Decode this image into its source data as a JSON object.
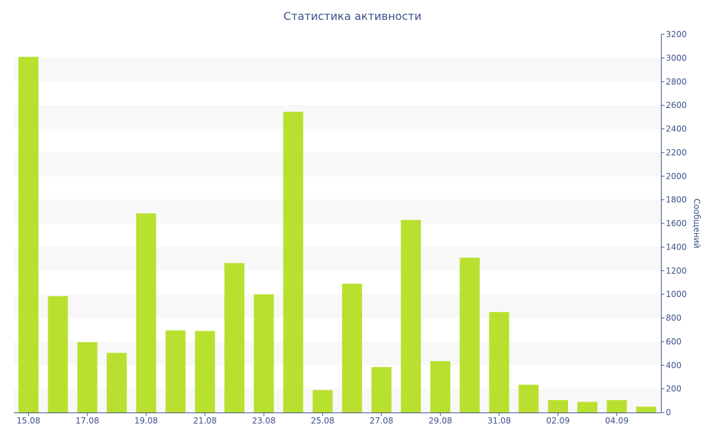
{
  "chart_data": {
    "type": "bar",
    "title": "Статистика активности",
    "ylabel": "Сообщений",
    "xlabel": "",
    "ylim": [
      0,
      3200
    ],
    "y_ticks": [
      0,
      200,
      400,
      600,
      800,
      1000,
      1200,
      1400,
      1600,
      1800,
      2000,
      2200,
      2400,
      2600,
      2800,
      3000,
      3200
    ],
    "y_axis_side": "right",
    "categories": [
      "15.08",
      "16.08",
      "17.08",
      "18.08",
      "19.08",
      "20.08",
      "21.08",
      "22.08",
      "23.08",
      "24.08",
      "25.08",
      "26.08",
      "27.08",
      "28.08",
      "29.08",
      "30.08",
      "31.08",
      "01.09",
      "02.09",
      "03.09",
      "04.09",
      "05.09"
    ],
    "x_tick_labels": [
      "15.08",
      "17.08",
      "19.08",
      "21.08",
      "23.08",
      "25.08",
      "27.08",
      "29.08",
      "31.08",
      "02.09",
      "04.09"
    ],
    "values": [
      3010,
      985,
      595,
      505,
      1685,
      695,
      690,
      1265,
      1000,
      2545,
      190,
      1090,
      385,
      1630,
      435,
      1310,
      850,
      235,
      105,
      90,
      105,
      50
    ],
    "colors": {
      "bar": "#b9e02f",
      "axis": "#3d4f8a",
      "text": "#3d4f8a",
      "band": "#f8f8f8"
    },
    "grid": "alternating horizontal bands",
    "legend": "none"
  }
}
